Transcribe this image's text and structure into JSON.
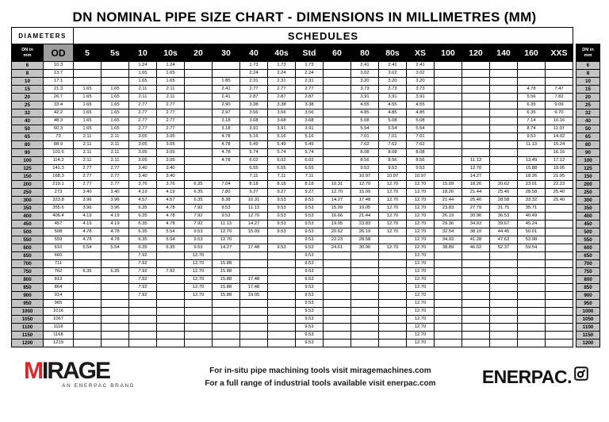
{
  "title": "DN NOMINAL PIPE SIZE CHART - DIMENSIONS IN MILLIMETRES (MM)",
  "colors": {
    "mirage_red": "#d7282f",
    "header_bg": "#000000",
    "od_header_bg": "#9d9d9d",
    "dn_cell_bg": "#c4c4c4"
  },
  "table": {
    "diameters_label": "DIAMETERS",
    "schedules_label": "SCHEDULES",
    "dn_header": "DN in\nmm",
    "od_header": "OD",
    "schedule_columns": [
      "5",
      "5s",
      "10",
      "10s",
      "20",
      "30",
      "40",
      "40s",
      "Std",
      "60",
      "80",
      "80s",
      "XS",
      "100",
      "120",
      "140",
      "160",
      "XXS"
    ],
    "rows": [
      [
        "6",
        "10.3",
        "",
        "",
        "1.24",
        "1.24",
        "",
        "",
        "1.73",
        "1.73",
        "1.73",
        "",
        "2.41",
        "2.41",
        "2.41",
        "",
        "",
        "",
        "",
        ""
      ],
      [
        "8",
        "13.7",
        "",
        "",
        "1.65",
        "1.65",
        "",
        "",
        "2.24",
        "2.24",
        "2.24",
        "",
        "3.02",
        "3.02",
        "3.02",
        "",
        "",
        "",
        "",
        ""
      ],
      [
        "10",
        "17.1",
        "",
        "",
        "1.65",
        "1.65",
        "",
        "1.85",
        "2.31",
        "2.31",
        "2.31",
        "",
        "3.20",
        "3.20",
        "3.20",
        "",
        "",
        "",
        "",
        ""
      ],
      [
        "15",
        "21.3",
        "1.65",
        "1.65",
        "2.11",
        "2.11",
        "",
        "2.41",
        "2.77",
        "2.77",
        "2.77",
        "",
        "3.73",
        "3.73",
        "3.73",
        "",
        "",
        "",
        "4.78",
        "7.47"
      ],
      [
        "20",
        "26.7",
        "1.65",
        "1.65",
        "2.11",
        "2.11",
        "",
        "2.41",
        "2.87",
        "2.87",
        "2.87",
        "",
        "3.91",
        "3.91",
        "3.91",
        "",
        "",
        "",
        "5.56",
        "7.82"
      ],
      [
        "25",
        "33.4",
        "1.65",
        "1.65",
        "2.77",
        "2.77",
        "",
        "2.90",
        "3.38",
        "3.38",
        "3.38",
        "",
        "4.55",
        "4.55",
        "4.55",
        "",
        "",
        "",
        "6.35",
        "9.09"
      ],
      [
        "32",
        "42.2",
        "1.65",
        "1.65",
        "2.77",
        "2.77",
        "",
        "2.97",
        "3.56",
        "3.56",
        "3.56",
        "",
        "4.85",
        "4.85",
        "4.85",
        "",
        "",
        "",
        "6.35",
        "9.70"
      ],
      [
        "40",
        "48.3",
        "1.65",
        "1.65",
        "2.77",
        "2.77",
        "",
        "3.18",
        "3.68",
        "3.68",
        "3.68",
        "",
        "5.08",
        "5.08",
        "5.08",
        "",
        "",
        "",
        "7.14",
        "10.16"
      ],
      [
        "50",
        "60.3",
        "1.65",
        "1.65",
        "2.77",
        "2.77",
        "",
        "3.18",
        "3.91",
        "3.91",
        "3.91",
        "",
        "5.54",
        "5.54",
        "5.54",
        "",
        "",
        "",
        "8.74",
        "11.07"
      ],
      [
        "65",
        "73",
        "2.11",
        "2.11",
        "3.05",
        "3.05",
        "",
        "4.78",
        "5.16",
        "5.16",
        "5.16",
        "",
        "7.01",
        "7.01",
        "7.01",
        "",
        "",
        "",
        "9.53",
        "14.02"
      ],
      [
        "80",
        "88.9",
        "2.11",
        "2.11",
        "3.05",
        "3.05",
        "",
        "4.78",
        "5.49",
        "5.49",
        "5.49",
        "",
        "7.62",
        "7.62",
        "7.62",
        "",
        "",
        "",
        "11.13",
        "15.24"
      ],
      [
        "90",
        "101.6",
        "2.11",
        "2.11",
        "3.05",
        "3.05",
        "",
        "4.78",
        "5.74",
        "5.74",
        "5.74",
        "",
        "8.08",
        "8.08",
        "8.08",
        "",
        "",
        "",
        "",
        "16.15"
      ],
      [
        "100",
        "114.3",
        "2.11",
        "2.11",
        "3.05",
        "3.05",
        "",
        "4.78",
        "6.02",
        "6.02",
        "6.02",
        "",
        "8.56",
        "8.56",
        "8.56",
        "",
        "11.13",
        "",
        "13.49",
        "17.12"
      ],
      [
        "125",
        "141.3",
        "2.77",
        "2.77",
        "3.40",
        "3.40",
        "",
        "",
        "6.55",
        "6.55",
        "6.55",
        "",
        "9.53",
        "9.53",
        "9.53",
        "",
        "12.70",
        "",
        "15.88",
        "19.05"
      ],
      [
        "150",
        "168.3",
        "2.77",
        "2.77",
        "3.40",
        "3.40",
        "",
        "",
        "7.11",
        "7.11",
        "7.11",
        "",
        "10.97",
        "10.97",
        "10.97",
        "",
        "14.27",
        "",
        "18.26",
        "21.95"
      ],
      [
        "200",
        "219.1",
        "2.77",
        "2.77",
        "3.76",
        "3.76",
        "6.35",
        "7.04",
        "8.18",
        "8.18",
        "8.18",
        "10.31",
        "12.70",
        "12.70",
        "12.70",
        "15.09",
        "18.26",
        "20.62",
        "23.01",
        "22.23"
      ],
      [
        "250",
        "273",
        "3.40",
        "3.40",
        "4.19",
        "4.19",
        "6.35",
        "7.80",
        "9.27",
        "9.27",
        "9.27",
        "12.70",
        "15.09",
        "12.70",
        "12.70",
        "18.26",
        "21.44",
        "25.40",
        "28.58",
        "25.40"
      ],
      [
        "300",
        "323.8",
        "3.96",
        "3.96",
        "4.57",
        "4.57",
        "6.35",
        "8.38",
        "10.31",
        "9.53",
        "9.53",
        "14.27",
        "17.48",
        "12.70",
        "12.70",
        "21.44",
        "25.40",
        "28.58",
        "33.32",
        "25.40"
      ],
      [
        "350",
        "355.6",
        "3.96",
        "3.96",
        "6.35",
        "4.78",
        "7.92",
        "9.53",
        "11.13",
        "9.53",
        "9.53",
        "15.09",
        "19.05",
        "12.70",
        "12.70",
        "23.83",
        "27.79",
        "31.75",
        "35.71",
        ""
      ],
      [
        "400",
        "406.4",
        "4.19",
        "4.19",
        "6.35",
        "4.78",
        "7.92",
        "9.53",
        "12.70",
        "9.53",
        "9.53",
        "16.66",
        "21.44",
        "12.70",
        "12.70",
        "26.19",
        "30.96",
        "36.53",
        "40.49",
        ""
      ],
      [
        "450",
        "457",
        "4.19",
        "4.19",
        "6.35",
        "4.78",
        "7.92",
        "11.13",
        "14.27",
        "9.53",
        "9.53",
        "19.05",
        "23.83",
        "12.70",
        "12.70",
        "29.36",
        "34.93",
        "39.67",
        "45.24",
        ""
      ],
      [
        "500",
        "508",
        "4.78",
        "4.78",
        "6.35",
        "5.54",
        "9.53",
        "12.70",
        "15.09",
        "9.53",
        "9.53",
        "20.62",
        "26.19",
        "12.70",
        "12.70",
        "32.54",
        "38.10",
        "44.45",
        "50.01",
        ""
      ],
      [
        "550",
        "559",
        "4.78",
        "4.78",
        "6.35",
        "5.54",
        "9.53",
        "12.70",
        "",
        "",
        "9.53",
        "22.23",
        "28.58",
        "",
        "12.70",
        "34.93",
        "41.28",
        "47.63",
        "53.98",
        ""
      ],
      [
        "600",
        "610",
        "5.54",
        "5.54",
        "6.35",
        "6.35",
        "9.53",
        "14.27",
        "17.48",
        "9.53",
        "9.53",
        "24.61",
        "30.96",
        "12.70",
        "12.70",
        "38.89",
        "46.02",
        "52.37",
        "59.54",
        ""
      ],
      [
        "650",
        "660",
        "",
        "",
        "7.92",
        "",
        "12.70",
        "",
        "",
        "",
        "9.53",
        "",
        "",
        "",
        "12.70",
        "",
        "",
        "",
        "",
        ""
      ],
      [
        "700",
        "711",
        "",
        "",
        "7.92",
        "",
        "12.70",
        "15.88",
        "",
        "",
        "9.53",
        "",
        "",
        "",
        "12.70",
        "",
        "",
        "",
        "",
        ""
      ],
      [
        "750",
        "762",
        "6.35",
        "6.35",
        "7.92",
        "7.92",
        "12.70",
        "15.88",
        "",
        "",
        "9.53",
        "",
        "",
        "",
        "12.70",
        "",
        "",
        "",
        "",
        ""
      ],
      [
        "800",
        "813",
        "",
        "",
        "7.92",
        "",
        "12.70",
        "15.88",
        "17.48",
        "",
        "9.53",
        "",
        "",
        "",
        "12.70",
        "",
        "",
        "",
        "",
        ""
      ],
      [
        "850",
        "864",
        "",
        "",
        "7.92",
        "",
        "12.70",
        "15.88",
        "17.48",
        "",
        "9.53",
        "",
        "",
        "",
        "12.70",
        "",
        "",
        "",
        "",
        ""
      ],
      [
        "900",
        "914",
        "",
        "",
        "7.92",
        "",
        "12.70",
        "15.88",
        "19.05",
        "",
        "9.53",
        "",
        "",
        "",
        "12.70",
        "",
        "",
        "",
        "",
        ""
      ],
      [
        "950",
        "965",
        "",
        "",
        "",
        "",
        "",
        "",
        "",
        "",
        "9.53",
        "",
        "",
        "",
        "12.70",
        "",
        "",
        "",
        "",
        ""
      ],
      [
        "1000",
        "1016",
        "",
        "",
        "",
        "",
        "",
        "",
        "",
        "",
        "9.53",
        "",
        "",
        "",
        "12.70",
        "",
        "",
        "",
        "",
        ""
      ],
      [
        "1050",
        "1067",
        "",
        "",
        "",
        "",
        "",
        "",
        "",
        "",
        "9.53",
        "",
        "",
        "",
        "12.70",
        "",
        "",
        "",
        "",
        ""
      ],
      [
        "1100",
        "1118",
        "",
        "",
        "",
        "",
        "",
        "",
        "",
        "",
        "9.53",
        "",
        "",
        "",
        "12.70",
        "",
        "",
        "",
        "",
        ""
      ],
      [
        "1150",
        "1168",
        "",
        "",
        "",
        "",
        "",
        "",
        "",
        "",
        "9.53",
        "",
        "",
        "",
        "12.70",
        "",
        "",
        "",
        "",
        ""
      ],
      [
        "1200",
        "1219",
        "",
        "",
        "",
        "",
        "",
        "",
        "",
        "",
        "9.53",
        "",
        "",
        "",
        "12.70",
        "",
        "",
        "",
        "",
        ""
      ]
    ]
  },
  "footer": {
    "mirage_m": "M",
    "mirage_rest": "IRAGE",
    "mirage_tagline": "AN ENERPAC BRAND",
    "line1": "For in-situ pipe machining tools visit miragemachines.com",
    "line2": "For a full range of industrial tools available visit enerpac.com",
    "enerpac_word": "ENERPAC."
  }
}
